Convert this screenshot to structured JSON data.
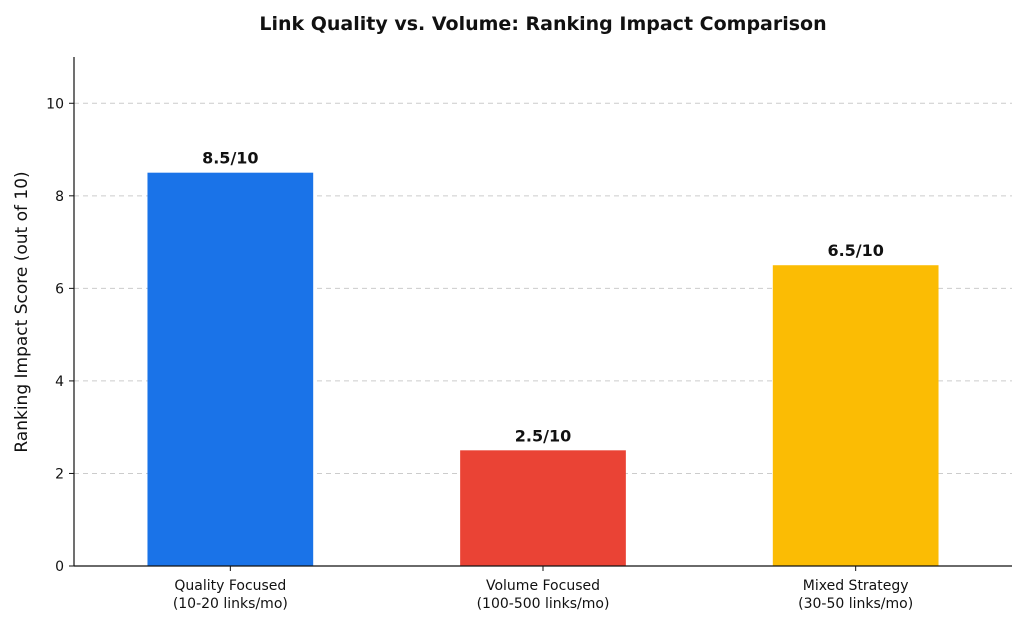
{
  "chart_data": {
    "type": "bar",
    "title": "Link Quality vs. Volume: Ranking Impact Comparison",
    "xlabel": "",
    "ylabel": "Ranking Impact Score (out of 10)",
    "ylim": [
      0,
      11
    ],
    "yticks": [
      0,
      2,
      4,
      6,
      8,
      10
    ],
    "grid": "horizontal dashed",
    "categories": [
      [
        "Quality Focused",
        "(10-20 links/mo)"
      ],
      [
        "Volume Focused",
        "(100-500 links/mo)"
      ],
      [
        "Mixed Strategy",
        "(30-50 links/mo)"
      ]
    ],
    "values": [
      8.5,
      2.5,
      6.5
    ],
    "data_labels": [
      "8.5/10",
      "2.5/10",
      "6.5/10"
    ],
    "colors": [
      "#1a73e8",
      "#ea4335",
      "#fbbc04"
    ]
  }
}
